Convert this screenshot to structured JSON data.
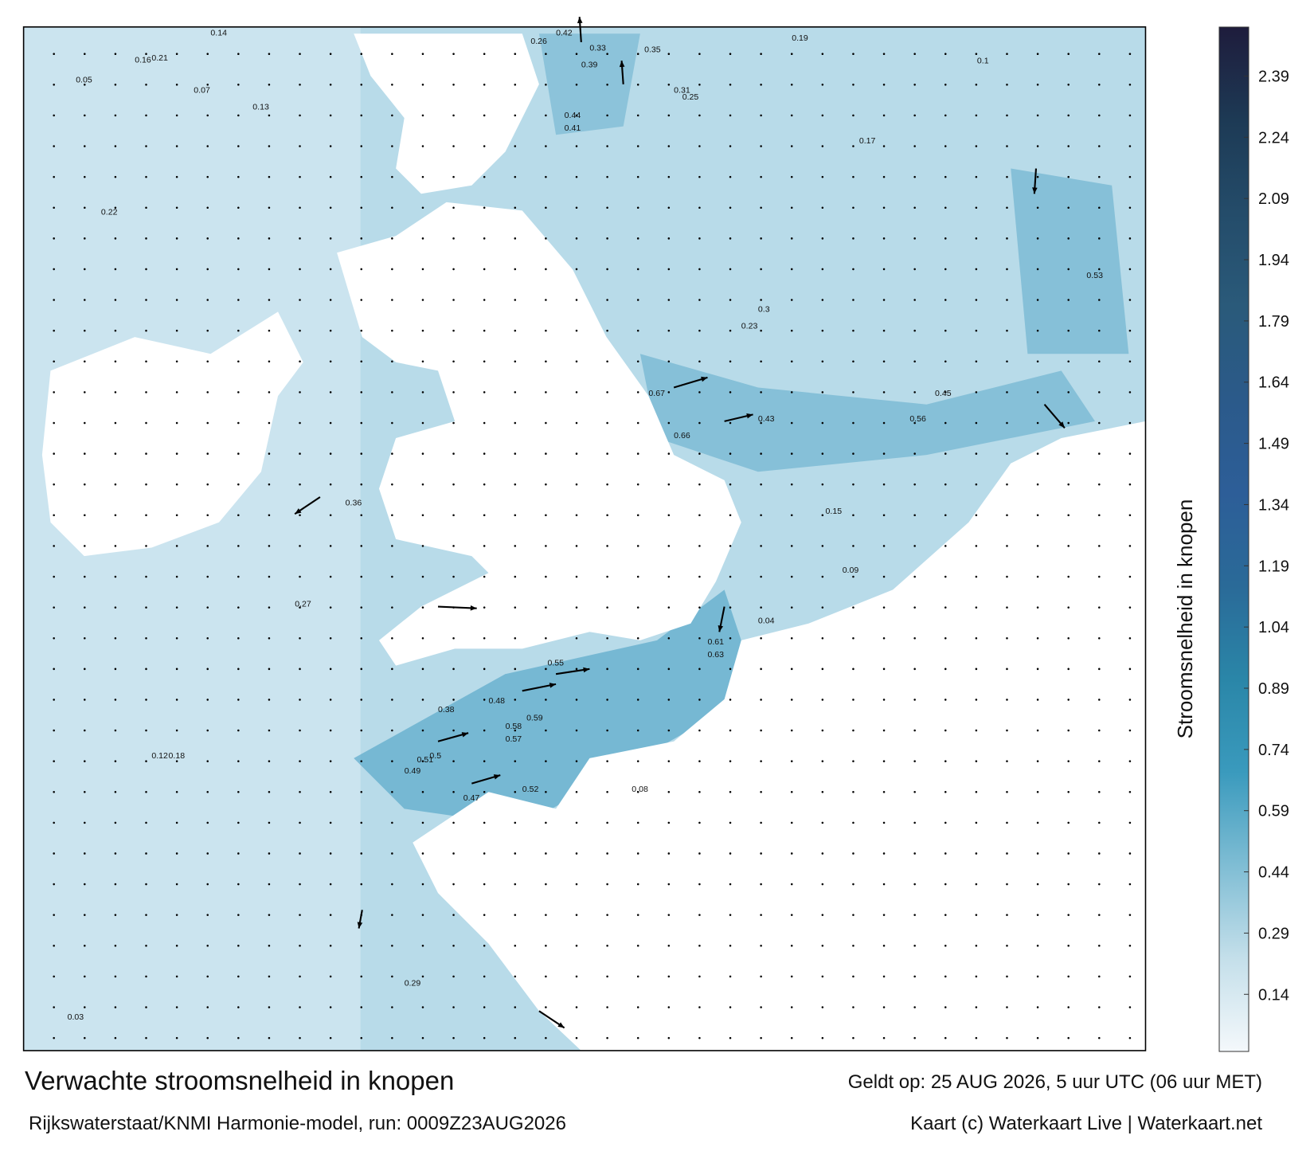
{
  "map": {
    "title": "Verwachte stroomsnelheid in knopen",
    "subtitle": "Rijkswaterstaat/KNMI Harmonie-model, run: 0009Z23AUG2026",
    "valid_time": "Geldt op: 25 AUG 2026, 5 uur UTC (06 uur MET)",
    "credit": "Kaart (c) Waterkaart Live | Waterkaart.net",
    "speed_labels": [
      "0.14",
      "0.29",
      "0.05",
      "0.07",
      "0.16",
      "0.21",
      "0.13",
      "0.33",
      "0.42",
      "0.26",
      "0.19",
      "0.39",
      "0.44",
      "0.41",
      "0.35",
      "0.31",
      "0.25",
      "0.43",
      "0.52",
      "0.48",
      "0.67",
      "0.66",
      "0.51",
      "0.56",
      "0.61",
      "0.63",
      "0.59",
      "0.58",
      "0.57",
      "0.55",
      "0.49",
      "0.36",
      "0.47",
      "0.53",
      "0.38",
      "0.27",
      "0.18",
      "0.12",
      "0.09",
      "0.04",
      "0.03",
      "0.15",
      "0.22",
      "0.08",
      "0.17",
      "0.1",
      "0.23",
      "0.3",
      "0.45",
      "0.5"
    ],
    "colorbar": {
      "label": "Stroomsnelheid in knopen",
      "clim": [
        0,
        2.51
      ],
      "ticks": [
        0.14,
        0.29,
        0.44,
        0.59,
        0.74,
        0.89,
        1.04,
        1.19,
        1.34,
        1.49,
        1.64,
        1.79,
        1.94,
        2.09,
        2.24,
        2.39
      ],
      "colors": [
        "#f4f8fb",
        "#c4dfea",
        "#7fbdd4",
        "#3a9abd",
        "#2a86a8",
        "#2a6a98",
        "#2d5e98",
        "#2b5a8a",
        "#2a5a7a",
        "#244c6a",
        "#1d3a55",
        "#1e1c3c"
      ]
    }
  }
}
